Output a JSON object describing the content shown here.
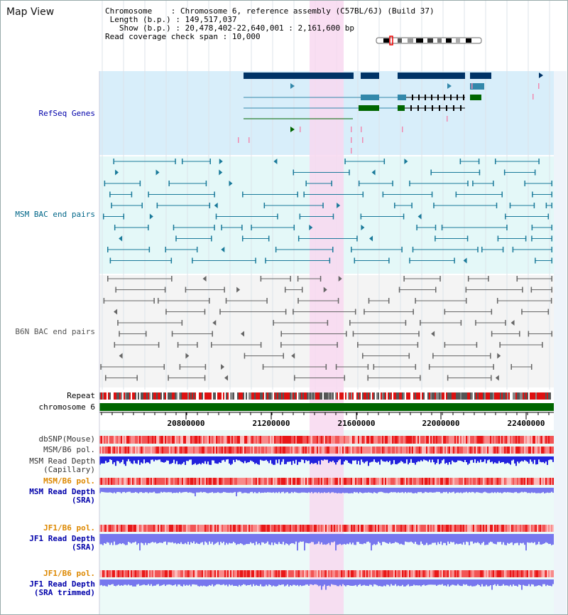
{
  "title": "Map View",
  "info": {
    "chromosome_key": "Chromosome",
    "chromosome_value": "Chromosome 6, reference assembly (C57BL/6J) (Build 37)",
    "length_key": "Length (b.p.)",
    "length_value": "149,517,037",
    "show_key": "Show (b.p.)",
    "show_value": "20,478,402-22,640,001 : 2,161,600 bp",
    "span_key": "Read coverage check span",
    "span_value": "10,000"
  },
  "tracks": {
    "refseq": {
      "label": "RefSeq Genes",
      "color": "#0000aa"
    },
    "msm_bac": {
      "label": "MSM BAC end pairs",
      "color": "#006688"
    },
    "b6n_bac": {
      "label": "B6N BAC end pairs",
      "color": "#555555"
    },
    "repeat": {
      "label": "Repeat"
    },
    "chromosome": {
      "label": "chromosome 6"
    },
    "dbsnp": {
      "label": "dbSNP(Mouse)"
    },
    "msm_b6_pol": {
      "label": "MSM/B6 pol."
    },
    "msm_depth_cap": {
      "label1": "MSM Read Depth",
      "label2": "(Capillary)"
    },
    "msm_b6_pol2": {
      "label": "MSM/B6 pol.",
      "color": "#dd8800"
    },
    "msm_depth_sra": {
      "label1": "MSM Read Depth",
      "label2": "(SRA)"
    },
    "jf1_b6_pol": {
      "label": "JF1/B6 pol.",
      "color": "#dd8800"
    },
    "jf1_depth_sra": {
      "label1": "JF1 Read Depth",
      "label2": "(SRA)"
    },
    "jf1_b6_pol2": {
      "label": "JF1/B6 pol.",
      "color": "#dd8800"
    },
    "jf1_depth_trim": {
      "label1": "JF1 Read Depth",
      "label2": "(SRA trimmed)"
    }
  },
  "axis": {
    "ticks": [
      "20800000",
      "21200000",
      "21600000",
      "22000000",
      "22400000"
    ]
  },
  "colors": {
    "highlight": "#f8d8f0",
    "refseq_bg": "#d8eefa",
    "msm_bg": "#e4f8f8",
    "b6n_bg": "#f4f4f4",
    "lower_bg": "#ecfaf8",
    "gene_dark": "#003366",
    "gene_teal": "#3388aa",
    "gene_green": "#006600",
    "chrom_green": "#006600",
    "depth_blue": "#2222dd",
    "depth_light": "#7777ee",
    "pol_red": "#ee2222"
  }
}
